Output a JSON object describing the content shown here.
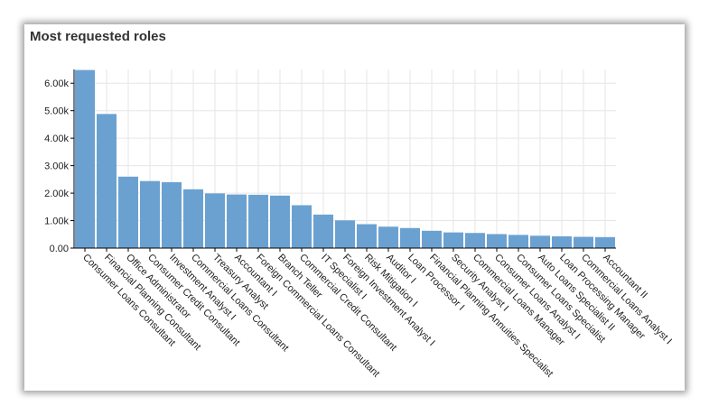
{
  "panel": {
    "title": "Most requested roles"
  },
  "colors": {
    "bar": "#6ba1d1",
    "grid": "#e6e6e6",
    "axis": "#000000",
    "text": "#222222"
  },
  "chart_data": {
    "type": "bar",
    "title": "Most requested roles",
    "xlabel": "",
    "ylabel": "",
    "ylim": [
      0,
      6500
    ],
    "yticks": [
      0,
      1000,
      2000,
      3000,
      4000,
      5000,
      6000
    ],
    "ytick_labels": [
      "0.00",
      "1.00k",
      "2.00k",
      "3.00k",
      "4.00k",
      "5.00k",
      "6.00k"
    ],
    "grid": true,
    "legend": false,
    "categories": [
      "Consumer Loans Consultant",
      "Financial Planning Consultant",
      "Office Administrator",
      "Consumer Credit Consultant",
      "Investment Analyst I",
      "Commercial Loans Consultant",
      "Treasury Analyst",
      "Accountant I",
      "Foreign Commercial Loans Consultant",
      "Branch Teller",
      "Commercial Credit Consultant",
      "IT Specialist I",
      "Foreign Investment Analyst I",
      "Risk Mitigation I",
      "Auditor I",
      "Loan Processor I",
      "Financial Planning Annuities Specialist",
      "Security Analyst I",
      "Commercial Loans Manager",
      "Consumer Loans Analyst I",
      "Consumer Loans Specialist",
      "Auto Loans Specialist II",
      "Loan Processing Manager",
      "Commercial Loans Analyst I",
      "Accountant II"
    ],
    "values": [
      6480,
      4880,
      2600,
      2440,
      2400,
      2140,
      1990,
      1950,
      1940,
      1910,
      1560,
      1220,
      1010,
      870,
      780,
      730,
      630,
      570,
      550,
      510,
      480,
      450,
      430,
      410,
      400
    ]
  }
}
